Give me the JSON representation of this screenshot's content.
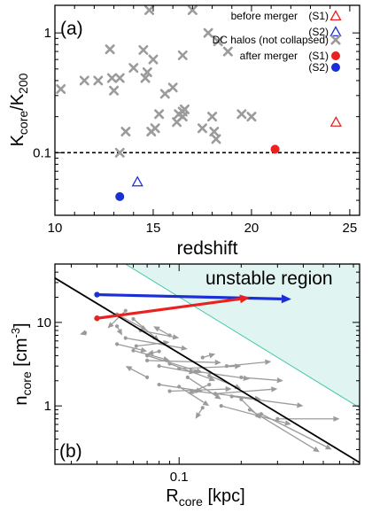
{
  "chart_data": [
    {
      "type": "scatter",
      "panel_label": "(a)",
      "xlabel": "redshift",
      "ylabel": "K_core/K_200",
      "xlim": [
        10,
        25.5
      ],
      "ylim": [
        0.03,
        1.7
      ],
      "yscale": "log",
      "x_ticks": [
        10,
        15,
        20,
        25
      ],
      "y_ticks": [
        0.1,
        1
      ],
      "y_tick_labels": [
        "0.1",
        "1"
      ],
      "hline": 0.1,
      "grid": false,
      "legend_position": "top-right",
      "legend": [
        {
          "text": "before merger",
          "tag": "(S1)",
          "marker": "triangle-open",
          "color": "#e8231f"
        },
        {
          "text": "",
          "tag": "(S2)",
          "marker": "triangle-open",
          "color": "#1b2fd6"
        },
        {
          "text": "DC halos (not collapsed)",
          "tag": "",
          "marker": "x",
          "color": "#9b9b9b"
        },
        {
          "text": "after merger",
          "tag": "(S1)",
          "marker": "circle",
          "color": "#e8231f"
        },
        {
          "text": "",
          "tag": "(S2)",
          "marker": "circle",
          "color": "#1b2fd6"
        }
      ],
      "series": [
        {
          "marker": "x",
          "color": "#9b9b9b",
          "points": [
            [
              10.3,
              0.34
            ],
            [
              11.5,
              0.4
            ],
            [
              12.2,
              0.4
            ],
            [
              12.8,
              0.73
            ],
            [
              12.9,
              0.42
            ],
            [
              13.0,
              0.33
            ],
            [
              13.3,
              0.42
            ],
            [
              13.3,
              0.1
            ],
            [
              13.6,
              0.15
            ],
            [
              14.0,
              0.51
            ],
            [
              14.5,
              0.72
            ],
            [
              14.6,
              0.42
            ],
            [
              14.7,
              0.47
            ],
            [
              14.8,
              1.55
            ],
            [
              14.9,
              0.15
            ],
            [
              15.0,
              0.6
            ],
            [
              15.1,
              0.16
            ],
            [
              15.3,
              0.21
            ],
            [
              15.6,
              0.31
            ],
            [
              16.0,
              0.35
            ],
            [
              16.2,
              0.18
            ],
            [
              16.3,
              0.21
            ],
            [
              16.5,
              0.22
            ],
            [
              16.5,
              0.2
            ],
            [
              16.5,
              0.65
            ],
            [
              16.6,
              0.23
            ],
            [
              17.0,
              1.55
            ],
            [
              17.5,
              0.16
            ],
            [
              17.8,
              1.0
            ],
            [
              18.0,
              0.2
            ],
            [
              18.1,
              0.15
            ],
            [
              18.2,
              0.13
            ],
            [
              18.3,
              0.85
            ],
            [
              18.8,
              0.7
            ],
            [
              19.5,
              0.21
            ],
            [
              20.0,
              0.2
            ]
          ]
        },
        {
          "name": "before merger (S1)",
          "marker": "triangle-open",
          "color": "#e8231f",
          "points": [
            [
              24.3,
              0.18
            ]
          ]
        },
        {
          "name": "before merger (S2)",
          "marker": "triangle-open",
          "color": "#1b2fd6",
          "points": [
            [
              14.2,
              0.057
            ]
          ]
        },
        {
          "name": "after merger (S1)",
          "marker": "circle",
          "color": "#e8231f",
          "points": [
            [
              21.2,
              0.107
            ]
          ]
        },
        {
          "name": "after merger (S2)",
          "marker": "circle",
          "color": "#1b2fd6",
          "points": [
            [
              13.3,
              0.043
            ]
          ]
        }
      ]
    },
    {
      "type": "line",
      "panel_label": "(b)",
      "xlabel": "R_core [kpc]",
      "ylabel": "n_core [cm^-3]",
      "xscale": "log",
      "yscale": "log",
      "xlim": [
        0.025,
        0.75
      ],
      "ylim": [
        0.2,
        50
      ],
      "x_ticks": [
        0.1
      ],
      "x_tick_labels": [
        "0.1"
      ],
      "y_ticks": [
        1,
        10
      ],
      "y_tick_labels": [
        "1",
        "10"
      ],
      "grid": false,
      "annotation": "unstable region",
      "region_color": "#e0f4f1",
      "region_edge_color": "#48c9a6",
      "region_boundary": [
        [
          0.025,
          165
        ],
        [
          0.75,
          0.95
        ]
      ],
      "fit_line": [
        [
          0.025,
          34
        ],
        [
          0.75,
          0.21
        ]
      ],
      "arrows": [
        {
          "color": "#1b2fd6",
          "from": [
            0.04,
            21.5
          ],
          "to": [
            0.35,
            19.0
          ]
        },
        {
          "color": "#e8231f",
          "from": [
            0.04,
            11.2
          ],
          "to": [
            0.22,
            19.8
          ]
        }
      ],
      "gray_arrow_color": "#9b9b9b",
      "gray_arrows": [
        [
          [
            0.05,
            12.5
          ],
          [
            0.07,
            8.0
          ]
        ],
        [
          [
            0.055,
            13.8
          ],
          [
            0.045,
            8.5
          ]
        ],
        [
          [
            0.06,
            11.0
          ],
          [
            0.08,
            6.0
          ]
        ],
        [
          [
            0.065,
            8.0
          ],
          [
            0.1,
            6.5
          ]
        ],
        [
          [
            0.05,
            5.5
          ],
          [
            0.07,
            4.5
          ]
        ],
        [
          [
            0.055,
            6.5
          ],
          [
            0.11,
            4.8
          ]
        ],
        [
          [
            0.06,
            4.6
          ],
          [
            0.09,
            3.5
          ]
        ],
        [
          [
            0.07,
            4.0
          ],
          [
            0.13,
            2.5
          ]
        ],
        [
          [
            0.07,
            3.5
          ],
          [
            0.16,
            3.3
          ]
        ],
        [
          [
            0.08,
            3.0
          ],
          [
            0.12,
            2.5
          ]
        ],
        [
          [
            0.09,
            3.2
          ],
          [
            0.15,
            2.0
          ]
        ],
        [
          [
            0.1,
            2.8
          ],
          [
            0.2,
            3.0
          ]
        ],
        [
          [
            0.12,
            2.6
          ],
          [
            0.22,
            2.1
          ]
        ],
        [
          [
            0.14,
            2.3
          ],
          [
            0.2,
            1.6
          ]
        ],
        [
          [
            0.11,
            2.2
          ],
          [
            0.16,
            1.2
          ]
        ],
        [
          [
            0.08,
            1.8
          ],
          [
            0.13,
            1.5
          ]
        ],
        [
          [
            0.09,
            1.5
          ],
          [
            0.18,
            1.6
          ]
        ],
        [
          [
            0.1,
            1.7
          ],
          [
            0.14,
            1.0
          ]
        ],
        [
          [
            0.12,
            1.5
          ],
          [
            0.25,
            1.2
          ]
        ],
        [
          [
            0.15,
            1.4
          ],
          [
            0.3,
            1.6
          ]
        ],
        [
          [
            0.18,
            1.3
          ],
          [
            0.4,
            1.0
          ]
        ],
        [
          [
            0.2,
            1.2
          ],
          [
            0.25,
            0.7
          ]
        ],
        [
          [
            0.16,
            1.0
          ],
          [
            0.35,
            0.6
          ]
        ],
        [
          [
            0.22,
            0.9
          ],
          [
            0.48,
            0.28
          ]
        ],
        [
          [
            0.25,
            0.8
          ],
          [
            0.55,
            0.3
          ]
        ],
        [
          [
            0.3,
            0.7
          ],
          [
            0.6,
            0.7
          ]
        ],
        [
          [
            0.13,
            0.95
          ],
          [
            0.12,
            0.7
          ]
        ],
        [
          [
            0.07,
            2.2
          ],
          [
            0.055,
            3.0
          ]
        ],
        [
          [
            0.08,
            4.5
          ],
          [
            0.07,
            4.2
          ]
        ],
        [
          [
            0.062,
            5.2
          ],
          [
            0.09,
            5.8
          ]
        ],
        [
          [
            0.05,
            9.0
          ],
          [
            0.053,
            7.0
          ]
        ],
        [
          [
            0.09,
            7.0
          ],
          [
            0.075,
            9.0
          ]
        ],
        [
          [
            0.035,
            7.5
          ],
          [
            0.033,
            7.2
          ]
        ],
        [
          [
            0.13,
            3.8
          ],
          [
            0.15,
            4.2
          ]
        ],
        [
          [
            0.17,
            3.0
          ],
          [
            0.28,
            3.4
          ]
        ],
        [
          [
            0.2,
            2.2
          ],
          [
            0.32,
            2.0
          ]
        ],
        [
          [
            0.14,
            1.8
          ],
          [
            0.11,
            1.4
          ]
        ]
      ]
    }
  ]
}
